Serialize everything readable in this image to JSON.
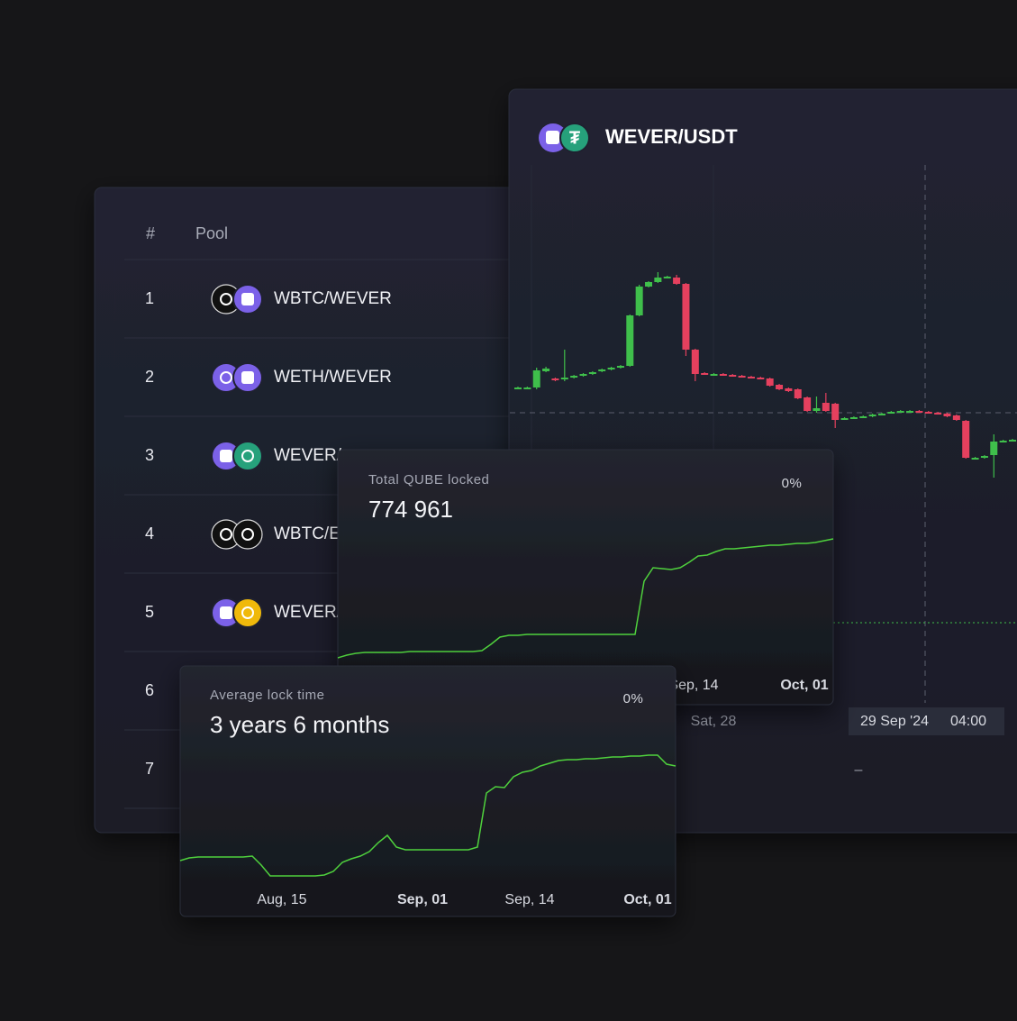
{
  "pools_table": {
    "header": [
      "#",
      "Pool"
    ],
    "rows": [
      [
        "1",
        "WBTC/WEVER"
      ],
      [
        "2",
        "WETH/WEVER"
      ],
      [
        "3",
        "WEVER/"
      ],
      [
        "4",
        "WBTC/E"
      ],
      [
        "5",
        "WEVER/"
      ],
      [
        "6"
      ],
      [
        "7"
      ]
    ]
  },
  "chart_data": [
    {
      "type": "candlestick",
      "title": "WEVER/USDT",
      "ylim": [
        0,
        450
      ],
      "up_color": "#3fbf4b",
      "down_color": "#e5405e",
      "candles": [
        [
          170,
          171,
          169,
          170
        ],
        [
          170,
          171,
          169,
          170
        ],
        [
          170,
          192,
          168,
          189
        ],
        [
          188,
          193,
          187,
          191
        ],
        [
          180,
          181,
          177,
          178
        ],
        [
          179,
          212,
          177,
          181
        ],
        [
          181,
          184,
          180,
          183
        ],
        [
          183,
          186,
          182,
          185
        ],
        [
          185,
          188,
          184,
          187
        ],
        [
          188,
          191,
          187,
          190
        ],
        [
          190,
          193,
          189,
          192
        ],
        [
          192,
          195,
          191,
          194
        ],
        [
          194,
          251,
          193,
          250
        ],
        [
          250,
          284,
          249,
          282
        ],
        [
          282,
          288,
          281,
          287
        ],
        [
          287,
          298,
          286,
          292
        ],
        [
          292,
          294,
          291,
          293
        ],
        [
          292,
          295,
          284,
          285
        ],
        [
          285,
          286,
          205,
          212
        ],
        [
          212,
          213,
          177,
          185
        ],
        [
          186,
          187,
          184,
          185
        ],
        [
          185,
          186,
          184,
          185
        ],
        [
          185,
          186,
          183,
          184
        ],
        [
          184,
          185,
          182,
          183
        ],
        [
          183,
          184,
          181,
          182
        ],
        [
          182,
          183,
          180,
          181
        ],
        [
          181,
          182,
          179,
          180
        ],
        [
          180,
          181,
          171,
          172
        ],
        [
          173,
          174,
          167,
          168
        ],
        [
          169,
          170,
          165,
          166
        ],
        [
          168,
          169,
          157,
          158
        ],
        [
          159,
          160,
          143,
          144
        ],
        [
          144,
          160,
          142,
          147
        ],
        [
          153,
          164,
          143,
          144
        ],
        [
          152,
          153,
          125,
          134
        ],
        [
          135,
          137,
          134,
          136
        ],
        [
          136,
          138,
          135,
          137
        ],
        [
          137,
          139,
          136,
          138
        ],
        [
          138,
          141,
          137,
          140
        ],
        [
          140,
          142,
          139,
          141
        ],
        [
          142,
          144,
          141,
          143
        ],
        [
          143,
          145,
          142,
          144
        ],
        [
          144,
          145,
          143,
          144
        ],
        [
          144,
          145,
          142,
          143
        ],
        [
          143,
          144,
          141,
          142
        ],
        [
          142,
          143,
          140,
          141
        ],
        [
          141,
          142,
          137,
          138
        ],
        [
          139,
          140,
          133,
          134
        ],
        [
          133,
          134,
          91,
          92
        ],
        [
          92,
          93,
          91,
          92
        ],
        [
          92,
          95,
          91,
          94
        ],
        [
          95,
          118,
          70,
          110
        ],
        [
          110,
          112,
          109,
          111
        ],
        [
          111,
          113,
          110,
          112
        ]
      ],
      "x_label": "Sat, 28",
      "crosshair_date": "29 Sep '24",
      "crosshair_time": "04:00",
      "placeholder": "–"
    },
    {
      "type": "line",
      "title": "Total QUBE locked",
      "value": "774 961",
      "change": "0%",
      "color": "#4fd13d",
      "values": [
        10,
        13,
        15,
        16,
        16,
        16,
        16,
        16,
        17,
        17,
        17,
        17,
        17,
        17,
        17,
        17,
        18,
        25,
        33,
        35,
        35,
        36,
        36,
        36,
        36,
        36,
        36,
        36,
        36,
        36,
        36,
        36,
        36,
        36,
        95,
        110,
        109,
        108,
        110,
        116,
        123,
        124,
        128,
        131,
        131,
        132,
        133,
        134,
        135,
        135,
        136,
        137,
        137,
        138,
        140,
        142
      ],
      "xlim": [
        0,
        55
      ],
      "ylim": [
        0,
        200
      ],
      "xticks": [
        {
          "value": 39.5,
          "label": "Sep, 14"
        },
        {
          "value": 51.8,
          "label": "Oct, 01"
        }
      ]
    },
    {
      "type": "line",
      "title": "Average lock time",
      "value": "3 years 6 months",
      "change": "0%",
      "color": "#4fd13d",
      "values": [
        45,
        48,
        49,
        49,
        49,
        49,
        49,
        49,
        50,
        40,
        28,
        28,
        28,
        28,
        28,
        28,
        29,
        33,
        43,
        47,
        50,
        55,
        65,
        73,
        60,
        57,
        57,
        57,
        57,
        57,
        57,
        57,
        57,
        60,
        120,
        127,
        126,
        138,
        143,
        145,
        150,
        153,
        156,
        157,
        157,
        158,
        158,
        159,
        160,
        160,
        161,
        161,
        162,
        162,
        152,
        150
      ],
      "xlim": [
        0,
        55
      ],
      "ylim": [
        0,
        200
      ],
      "xticks": [
        {
          "value": 11.3,
          "label": "Aug, 15"
        },
        {
          "value": 26.9,
          "label": "Sep, 01"
        },
        {
          "value": 38.8,
          "label": "Sep, 14"
        },
        {
          "value": 51.9,
          "label": "Oct, 01"
        }
      ]
    }
  ]
}
